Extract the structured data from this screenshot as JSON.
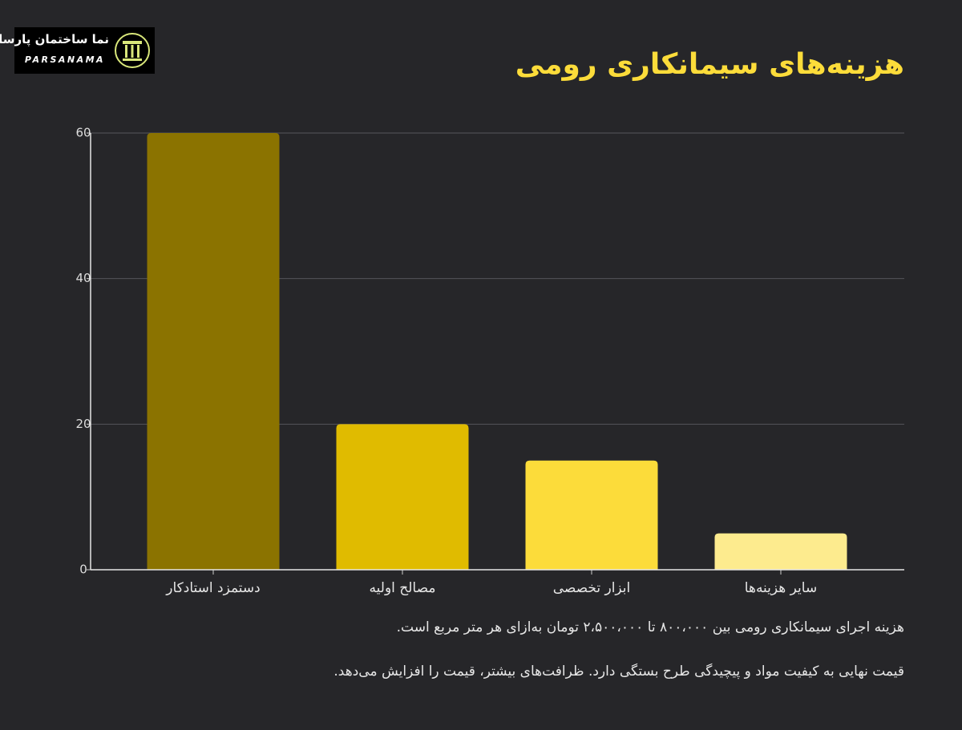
{
  "logo": {
    "name": "نما ساختمان پارسا",
    "brand": "PARSANAMA"
  },
  "chart_data": {
    "type": "bar",
    "title": "هزینه‌های سیمانکاری رومی",
    "categories": [
      "دستمزد استادکار",
      "مصالح اولیه",
      "ابزار تخصصی",
      "سایر هزینه‌ها"
    ],
    "values": [
      60,
      20,
      15,
      5
    ],
    "colors": [
      "#8b7300",
      "#e0bb00",
      "#fcdc3a",
      "#fdeb8e"
    ],
    "ylim": [
      0,
      60
    ],
    "yticks": [
      0,
      20,
      40,
      60
    ],
    "grid": true,
    "notes": [
      "هزینه اجرای سیمانکاری رومی بین ۸۰۰،۰۰۰ تا ۲،۵۰۰،۰۰۰ تومان به‌ازای هر متر مربع است.",
      "قیمت نهایی به کیفیت مواد و پیچیدگی طرح بستگی دارد. ظرافت‌های بیشتر، قیمت را افزایش می‌دهد."
    ]
  }
}
